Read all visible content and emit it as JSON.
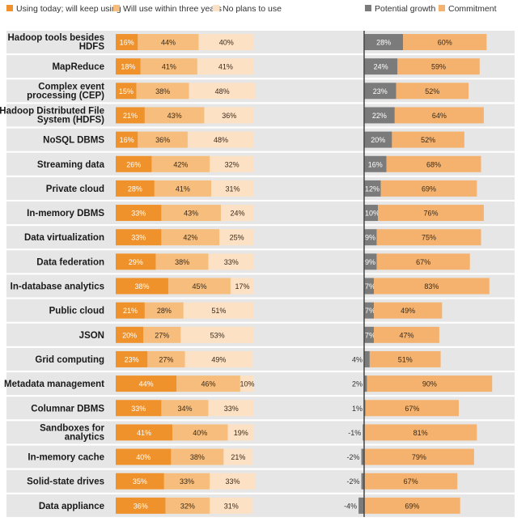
{
  "colors": {
    "keep": "#f0922b",
    "will": "#f6bd7c",
    "noplan": "#fce1c4",
    "growth": "#7b7b7b",
    "commit": "#f4b26e",
    "band": "#e6e6e6",
    "axis": "#444444"
  },
  "chart_data": [
    {
      "type": "bar",
      "stacked": true,
      "orientation": "horizontal",
      "xlim": [
        0,
        100
      ],
      "legend": "top-left",
      "categories": [
        "Hadoop tools besides HDFS",
        "MapReduce",
        "Complex event processing (CEP)",
        "Hadoop Distributed File System (HDFS)",
        "NoSQL DBMS",
        "Streaming data",
        "Private cloud",
        "In-memory DBMS",
        "Data virtualization",
        "Data federation",
        "In-database analytics",
        "Public cloud",
        "JSON",
        "Grid computing",
        "Metadata management",
        "Columnar DBMS",
        "Sandboxes for analytics",
        "In-memory cache",
        "Solid-state drives",
        "Data appliance"
      ],
      "series": [
        {
          "name": "Using today; will keep using",
          "values": [
            16,
            18,
            15,
            21,
            16,
            26,
            28,
            33,
            33,
            29,
            38,
            21,
            20,
            23,
            44,
            33,
            41,
            40,
            35,
            36
          ]
        },
        {
          "name": "Will use within three years",
          "values": [
            44,
            41,
            38,
            43,
            36,
            42,
            41,
            43,
            42,
            38,
            45,
            28,
            27,
            27,
            46,
            34,
            40,
            38,
            33,
            32
          ]
        },
        {
          "name": "No plans to use",
          "values": [
            40,
            41,
            48,
            36,
            48,
            32,
            31,
            24,
            25,
            33,
            17,
            51,
            53,
            49,
            10,
            33,
            19,
            21,
            33,
            31
          ]
        }
      ]
    },
    {
      "type": "bar",
      "orientation": "horizontal",
      "legend": "top-right",
      "categories": [
        "Hadoop tools besides HDFS",
        "MapReduce",
        "Complex event processing (CEP)",
        "Hadoop Distributed File System (HDFS)",
        "NoSQL DBMS",
        "Streaming data",
        "Private cloud",
        "In-memory DBMS",
        "Data virtualization",
        "Data federation",
        "In-database analytics",
        "Public cloud",
        "JSON",
        "Grid computing",
        "Metadata management",
        "Columnar DBMS",
        "Sandboxes for analytics",
        "In-memory cache",
        "Solid-state drives",
        "Data appliance"
      ],
      "series": [
        {
          "name": "Potential growth",
          "values": [
            28,
            24,
            23,
            22,
            20,
            16,
            12,
            10,
            9,
            9,
            7,
            7,
            7,
            4,
            2,
            1,
            -1,
            -2,
            -2,
            -4
          ]
        },
        {
          "name": "Commitment",
          "values": [
            60,
            59,
            52,
            64,
            52,
            68,
            69,
            76,
            75,
            67,
            83,
            49,
            47,
            51,
            90,
            67,
            81,
            79,
            67,
            69
          ]
        }
      ]
    }
  ]
}
